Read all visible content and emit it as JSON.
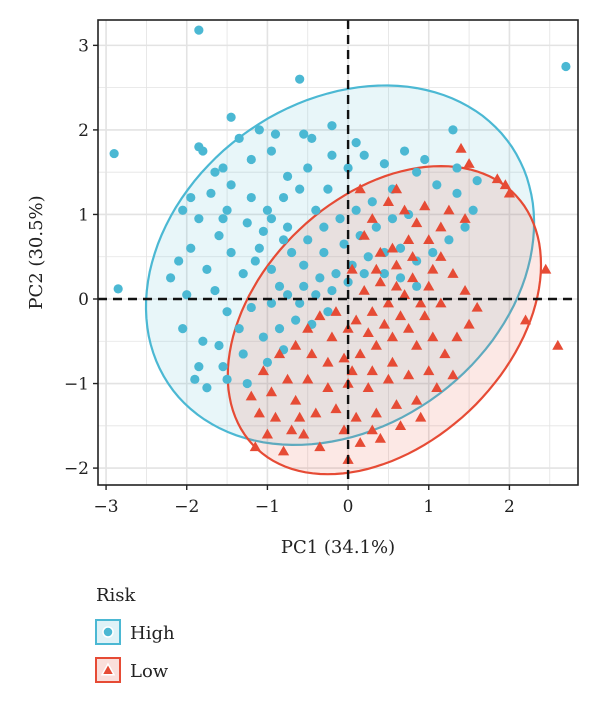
{
  "chart_data": {
    "type": "scatter",
    "xlabel": "PC1 (34.1%)",
    "ylabel": "PC2 (30.5%)",
    "xlim": [
      -3.1,
      2.85
    ],
    "ylim": [
      -2.2,
      3.3
    ],
    "xticks": [
      -3,
      -2,
      -1,
      0,
      1,
      2
    ],
    "yticks": [
      -2,
      -1,
      0,
      1,
      2,
      3
    ],
    "grid": true,
    "reference_lines": {
      "x": 0,
      "y": 0,
      "style": "dashed"
    },
    "legend": {
      "title": "Risk",
      "placement": "bottom-left"
    },
    "series": [
      {
        "name": "High",
        "marker": "circle",
        "color": "#4BB8D3",
        "ellipse": {
          "cx": -0.1,
          "cy": 0.4,
          "rx": 2.55,
          "ry": 1.95,
          "angle_deg": 31
        },
        "points": [
          [
            -1.85,
            3.18
          ],
          [
            -0.6,
            2.6
          ],
          [
            2.7,
            2.75
          ],
          [
            -2.9,
            1.72
          ],
          [
            -2.85,
            0.12
          ],
          [
            -1.45,
            2.15
          ],
          [
            -1.35,
            1.9
          ],
          [
            -1.85,
            1.8
          ],
          [
            -1.8,
            1.75
          ],
          [
            -1.2,
            1.65
          ],
          [
            -0.95,
            1.75
          ],
          [
            -0.55,
            1.95
          ],
          [
            -0.2,
            2.05
          ],
          [
            0.1,
            1.85
          ],
          [
            -0.5,
            1.55
          ],
          [
            -0.75,
            1.45
          ],
          [
            -1.55,
            1.55
          ],
          [
            -1.65,
            1.5
          ],
          [
            -1.45,
            1.35
          ],
          [
            -1.2,
            1.2
          ],
          [
            -1.7,
            1.25
          ],
          [
            -1.95,
            1.2
          ],
          [
            -2.05,
            1.05
          ],
          [
            -1.85,
            0.95
          ],
          [
            -1.55,
            0.95
          ],
          [
            -1.25,
            0.9
          ],
          [
            -1.05,
            0.8
          ],
          [
            -0.8,
            0.7
          ],
          [
            -1.6,
            0.75
          ],
          [
            -1.95,
            0.6
          ],
          [
            -2.1,
            0.45
          ],
          [
            -1.75,
            0.35
          ],
          [
            -1.45,
            0.55
          ],
          [
            -1.15,
            0.45
          ],
          [
            -0.95,
            0.35
          ],
          [
            -1.3,
            0.3
          ],
          [
            -1.65,
            0.1
          ],
          [
            -2.0,
            0.05
          ],
          [
            -2.2,
            0.25
          ],
          [
            -1.5,
            -0.15
          ],
          [
            -1.2,
            -0.1
          ],
          [
            -0.95,
            -0.05
          ],
          [
            -0.75,
            0.05
          ],
          [
            -0.55,
            0.15
          ],
          [
            -0.35,
            0.25
          ],
          [
            -0.15,
            0.3
          ],
          [
            0.05,
            0.4
          ],
          [
            0.25,
            0.5
          ],
          [
            0.45,
            0.55
          ],
          [
            0.65,
            0.6
          ],
          [
            0.85,
            0.45
          ],
          [
            1.05,
            0.55
          ],
          [
            1.25,
            0.7
          ],
          [
            1.45,
            0.85
          ],
          [
            1.55,
            1.05
          ],
          [
            1.35,
            1.25
          ],
          [
            1.1,
            1.35
          ],
          [
            0.85,
            1.5
          ],
          [
            0.55,
            1.3
          ],
          [
            0.3,
            1.15
          ],
          [
            0.1,
            1.05
          ],
          [
            -0.1,
            0.95
          ],
          [
            -0.3,
            0.85
          ],
          [
            -0.5,
            0.7
          ],
          [
            -0.7,
            0.55
          ],
          [
            -0.4,
            1.05
          ],
          [
            -0.25,
            1.3
          ],
          [
            0.0,
            1.55
          ],
          [
            0.2,
            1.7
          ],
          [
            0.45,
            1.6
          ],
          [
            0.7,
            1.75
          ],
          [
            0.95,
            1.65
          ],
          [
            1.3,
            2.0
          ],
          [
            1.35,
            1.55
          ],
          [
            1.6,
            1.4
          ],
          [
            -0.05,
            0.65
          ],
          [
            0.15,
            0.75
          ],
          [
            0.35,
            0.85
          ],
          [
            0.55,
            0.95
          ],
          [
            0.75,
            1.0
          ],
          [
            -1.0,
            1.05
          ],
          [
            -0.8,
            1.2
          ],
          [
            -0.6,
            1.3
          ],
          [
            -1.1,
            0.6
          ],
          [
            -0.85,
            0.15
          ],
          [
            -0.6,
            -0.05
          ],
          [
            -0.4,
            0.05
          ],
          [
            -0.2,
            0.1
          ],
          [
            0.0,
            0.2
          ],
          [
            0.2,
            0.3
          ],
          [
            -1.35,
            -0.35
          ],
          [
            -1.6,
            -0.55
          ],
          [
            -1.85,
            -0.8
          ],
          [
            -1.55,
            -0.8
          ],
          [
            -1.3,
            -0.65
          ],
          [
            -1.05,
            -0.45
          ],
          [
            -0.85,
            -0.35
          ],
          [
            -0.65,
            -0.25
          ],
          [
            -1.9,
            -0.95
          ],
          [
            -1.75,
            -1.05
          ],
          [
            -1.25,
            -1.0
          ],
          [
            -1.5,
            -0.95
          ],
          [
            -1.0,
            -0.75
          ],
          [
            -0.8,
            -0.6
          ],
          [
            -0.45,
            -0.3
          ],
          [
            -2.05,
            -0.35
          ],
          [
            -1.8,
            -0.5
          ],
          [
            -0.25,
            -0.15
          ],
          [
            0.45,
            0.3
          ],
          [
            0.65,
            0.25
          ],
          [
            0.85,
            0.15
          ],
          [
            -0.3,
            0.55
          ],
          [
            -0.55,
            0.4
          ],
          [
            -0.75,
            0.85
          ],
          [
            -0.95,
            0.95
          ],
          [
            -1.5,
            1.05
          ],
          [
            -0.2,
            1.7
          ],
          [
            -0.45,
            1.9
          ],
          [
            -0.9,
            1.95
          ],
          [
            -1.1,
            2.0
          ]
        ]
      },
      {
        "name": "Low",
        "marker": "triangle",
        "color": "#E64B35",
        "ellipse": {
          "cx": 0.45,
          "cy": -0.25,
          "rx": 2.2,
          "ry": 1.5,
          "angle_deg": 40
        },
        "points": [
          [
            1.4,
            1.78
          ],
          [
            1.5,
            1.6
          ],
          [
            1.85,
            1.42
          ],
          [
            1.95,
            1.35
          ],
          [
            2.0,
            1.25
          ],
          [
            2.45,
            0.35
          ],
          [
            2.2,
            -0.25
          ],
          [
            2.6,
            -0.55
          ],
          [
            -1.1,
            -1.35
          ],
          [
            -1.0,
            -1.6
          ],
          [
            -0.7,
            -1.55
          ],
          [
            -1.15,
            -1.75
          ],
          [
            -0.8,
            -1.8
          ],
          [
            -0.55,
            -1.6
          ],
          [
            -0.35,
            -1.75
          ],
          [
            0.0,
            -1.9
          ],
          [
            0.15,
            -1.7
          ],
          [
            0.4,
            -1.65
          ],
          [
            0.65,
            -1.5
          ],
          [
            0.9,
            -1.4
          ],
          [
            0.85,
            -1.2
          ],
          [
            0.6,
            -1.25
          ],
          [
            0.35,
            -1.35
          ],
          [
            0.1,
            -1.4
          ],
          [
            -0.15,
            -1.3
          ],
          [
            -0.4,
            -1.35
          ],
          [
            -0.65,
            -1.2
          ],
          [
            -0.95,
            -1.1
          ],
          [
            -0.75,
            -0.95
          ],
          [
            -0.5,
            -0.95
          ],
          [
            -0.25,
            -1.05
          ],
          [
            0.0,
            -1.0
          ],
          [
            0.25,
            -1.05
          ],
          [
            0.5,
            -0.95
          ],
          [
            0.75,
            -0.9
          ],
          [
            1.0,
            -0.85
          ],
          [
            1.2,
            -0.65
          ],
          [
            1.35,
            -0.45
          ],
          [
            1.5,
            -0.3
          ],
          [
            1.6,
            -0.1
          ],
          [
            1.45,
            0.1
          ],
          [
            1.3,
            0.3
          ],
          [
            1.15,
            0.5
          ],
          [
            1.0,
            0.7
          ],
          [
            0.85,
            0.9
          ],
          [
            0.7,
            1.05
          ],
          [
            0.5,
            1.15
          ],
          [
            0.3,
            0.95
          ],
          [
            0.2,
            0.75
          ],
          [
            0.4,
            0.55
          ],
          [
            0.6,
            0.4
          ],
          [
            0.8,
            0.25
          ],
          [
            1.0,
            0.15
          ],
          [
            1.15,
            -0.05
          ],
          [
            0.95,
            -0.2
          ],
          [
            0.75,
            -0.35
          ],
          [
            0.55,
            -0.45
          ],
          [
            0.35,
            -0.55
          ],
          [
            0.15,
            -0.65
          ],
          [
            -0.05,
            -0.7
          ],
          [
            -0.25,
            -0.75
          ],
          [
            -0.45,
            -0.65
          ],
          [
            -0.65,
            -0.55
          ],
          [
            -0.85,
            -0.65
          ],
          [
            -1.05,
            -0.85
          ],
          [
            0.1,
            -0.25
          ],
          [
            0.3,
            -0.15
          ],
          [
            0.5,
            -0.05
          ],
          [
            0.7,
            0.05
          ],
          [
            0.9,
            -0.05
          ],
          [
            0.2,
            0.1
          ],
          [
            0.4,
            0.2
          ],
          [
            0.6,
            0.15
          ],
          [
            0.8,
            0.5
          ],
          [
            1.05,
            0.35
          ],
          [
            0.25,
            -0.4
          ],
          [
            0.45,
            -0.3
          ],
          [
            0.65,
            -0.2
          ],
          [
            0.85,
            -0.55
          ],
          [
            1.05,
            -0.45
          ],
          [
            -0.2,
            -0.45
          ],
          [
            0.0,
            -0.35
          ],
          [
            -0.35,
            -0.2
          ],
          [
            -0.5,
            -0.35
          ],
          [
            -0.15,
            -0.15
          ],
          [
            0.05,
            0.35
          ],
          [
            0.35,
            0.35
          ],
          [
            0.55,
            0.6
          ],
          [
            0.75,
            0.7
          ],
          [
            1.15,
            0.85
          ],
          [
            1.25,
            1.05
          ],
          [
            1.45,
            0.95
          ],
          [
            0.95,
            1.1
          ],
          [
            0.15,
            1.3
          ],
          [
            0.6,
            1.3
          ],
          [
            1.3,
            -0.9
          ],
          [
            1.1,
            -1.05
          ],
          [
            0.3,
            -1.55
          ],
          [
            -0.05,
            -1.55
          ],
          [
            -0.6,
            -1.4
          ],
          [
            -1.2,
            -1.15
          ],
          [
            -0.9,
            -1.4
          ],
          [
            0.55,
            -0.75
          ],
          [
            0.3,
            -0.85
          ],
          [
            0.05,
            -0.85
          ]
        ]
      }
    ]
  }
}
